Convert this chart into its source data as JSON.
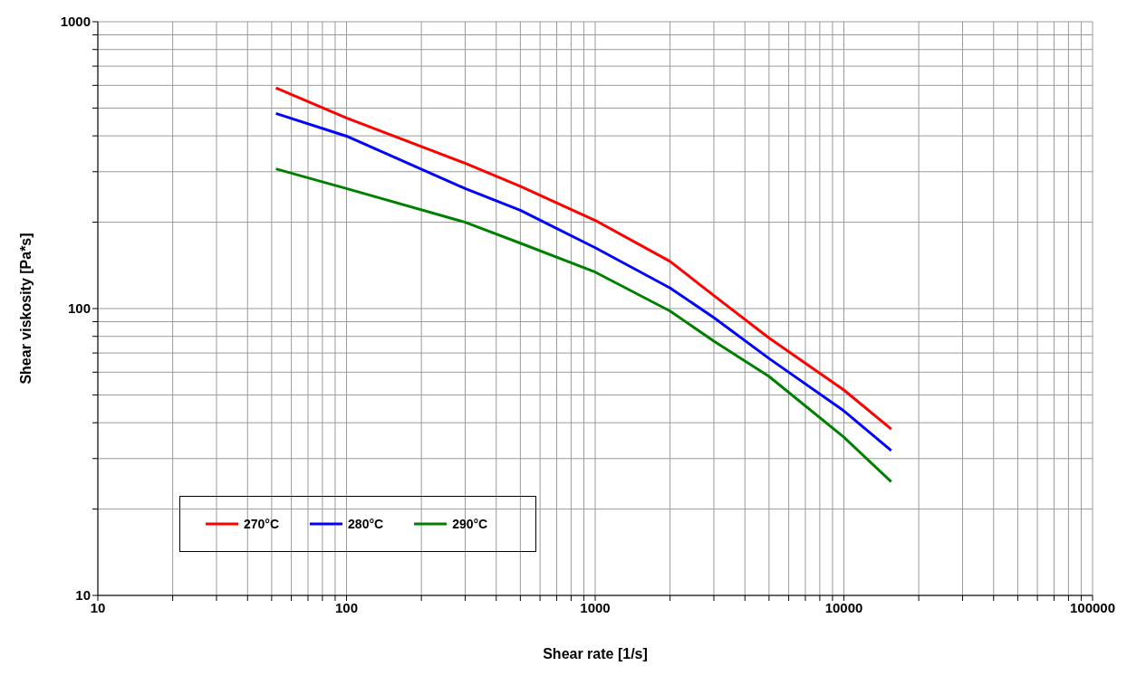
{
  "chart_data": {
    "type": "line",
    "xlabel": "Shear rate [1/s]",
    "ylabel": "Shear viskosity [Pa*s]",
    "log": "xy",
    "grid": true,
    "legend": "bottom left",
    "line_style": "solid",
    "xlim": [
      10,
      100000
    ],
    "ylim": [
      10,
      1000
    ],
    "xticks": [
      10,
      {
        "value": 20,
        "label": null
      },
      {
        "value": 30,
        "label": null
      },
      {
        "value": 40,
        "label": null
      },
      {
        "value": 50,
        "label": null
      },
      {
        "value": 60,
        "label": null
      },
      {
        "value": 70,
        "label": null
      },
      {
        "value": 80,
        "label": null
      },
      {
        "value": 90,
        "label": null
      },
      100,
      {
        "value": 200,
        "label": null
      },
      {
        "value": 300,
        "label": null
      },
      {
        "value": 400,
        "label": null
      },
      {
        "value": 500,
        "label": null
      },
      {
        "value": 600,
        "label": null
      },
      {
        "value": 700,
        "label": null
      },
      {
        "value": 800,
        "label": null
      },
      {
        "value": 900,
        "label": null
      },
      1000,
      {
        "value": 2000,
        "label": null
      },
      {
        "value": 3000,
        "label": null
      },
      {
        "value": 4000,
        "label": null
      },
      {
        "value": 5000,
        "label": null
      },
      {
        "value": 6000,
        "label": null
      },
      {
        "value": 7000,
        "label": null
      },
      {
        "value": 8000,
        "label": null
      },
      {
        "value": 9000,
        "label": null
      },
      10000,
      {
        "value": 20000,
        "label": null
      },
      {
        "value": 30000,
        "label": null
      },
      {
        "value": 40000,
        "label": null
      },
      {
        "value": 50000,
        "label": null
      },
      {
        "value": 60000,
        "label": null
      },
      {
        "value": 70000,
        "label": null
      },
      {
        "value": 80000,
        "label": null
      },
      {
        "value": 90000,
        "label": null
      },
      100000
    ],
    "yticks": [
      10,
      {
        "value": 20,
        "label": null
      },
      {
        "value": 30,
        "label": null
      },
      {
        "value": 40,
        "label": null
      },
      {
        "value": 50,
        "label": null
      },
      {
        "value": 60,
        "label": null
      },
      {
        "value": 70,
        "label": null
      },
      {
        "value": 80,
        "label": null
      },
      {
        "value": 90,
        "label": null
      },
      100,
      {
        "value": 200,
        "label": null
      },
      {
        "value": 300,
        "label": null
      },
      {
        "value": 400,
        "label": null
      },
      {
        "value": 500,
        "label": null
      },
      {
        "value": 600,
        "label": null
      },
      {
        "value": 700,
        "label": null
      },
      {
        "value": 800,
        "label": null
      },
      {
        "value": 900,
        "label": null
      },
      1000
    ],
    "series": [
      {
        "name": "270°C",
        "color": "#ff0000",
        "x": [
          52,
          100,
          300,
          500,
          1000,
          2000,
          3000,
          5000,
          10000,
          15500
        ],
        "values": [
          588,
          462,
          321,
          267,
          203,
          146,
          111,
          79,
          52,
          38
        ]
      },
      {
        "name": "280°C",
        "color": "#0000ff",
        "x": [
          52,
          100,
          300,
          500,
          1000,
          2000,
          3000,
          5000,
          10000,
          15500
        ],
        "values": [
          479,
          399,
          262,
          220,
          163,
          118,
          93,
          67,
          44,
          32
        ]
      },
      {
        "name": "290°C",
        "color": "#008000",
        "x": [
          52,
          100,
          300,
          500,
          1000,
          2000,
          3000,
          5000,
          10000,
          15500
        ],
        "values": [
          307,
          262,
          200,
          169,
          134,
          98,
          77,
          58,
          35.6,
          24.9
        ]
      }
    ]
  }
}
